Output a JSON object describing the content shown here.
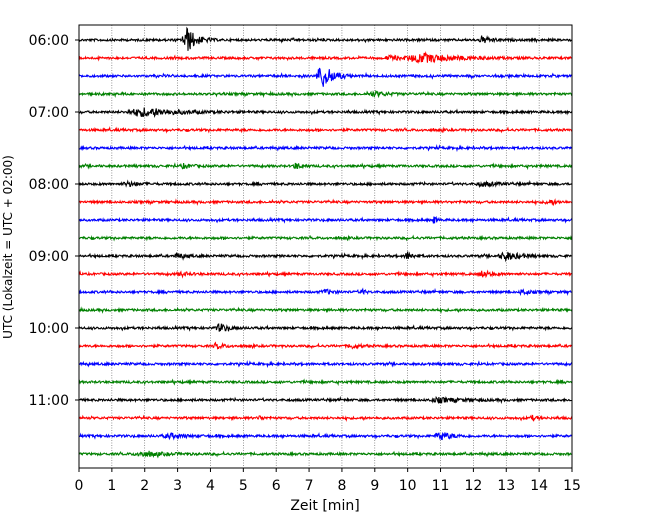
{
  "chart_data": {
    "type": "line",
    "title": "",
    "xlabel": "Zeit  [min]",
    "ylabel": "UTC (Lokalzeit = UTC + 02:00)",
    "xlim": [
      0,
      15
    ],
    "x_ticks": [
      0,
      1,
      2,
      3,
      4,
      5,
      6,
      7,
      8,
      9,
      10,
      11,
      12,
      13,
      14,
      15
    ],
    "y_tick_labels": [
      "06:00",
      "07:00",
      "08:00",
      "09:00",
      "10:00",
      "11:00"
    ],
    "grid": "vertical dotted",
    "trace_colors": [
      "#000000",
      "#ff0000",
      "#0000ff",
      "#008000"
    ],
    "traces": [
      {
        "start": "06:00",
        "color": "#000000",
        "events": [
          {
            "t": 3.3,
            "amp": 12,
            "dur": 0.35
          },
          {
            "t": 12.3,
            "amp": 3,
            "dur": 0.3
          }
        ]
      },
      {
        "start": "06:15",
        "color": "#ff0000",
        "events": [
          {
            "t": 10.5,
            "amp": 4,
            "dur": 1.2
          },
          {
            "t": 9.5,
            "amp": 2,
            "dur": 0.5
          }
        ]
      },
      {
        "start": "06:30",
        "color": "#0000ff",
        "events": [
          {
            "t": 7.4,
            "amp": 12,
            "dur": 0.4
          }
        ]
      },
      {
        "start": "06:45",
        "color": "#008000",
        "events": [
          {
            "t": 9.0,
            "amp": 2,
            "dur": 0.5
          }
        ]
      },
      {
        "start": "07:00",
        "color": "#000000",
        "events": [
          {
            "t": 2.0,
            "amp": 4,
            "dur": 1.2
          }
        ]
      },
      {
        "start": "07:15",
        "color": "#ff0000",
        "events": []
      },
      {
        "start": "07:30",
        "color": "#0000ff",
        "events": []
      },
      {
        "start": "07:45",
        "color": "#008000",
        "events": [
          {
            "t": 6.6,
            "amp": 3,
            "dur": 0.2
          },
          {
            "t": 3.2,
            "amp": 2,
            "dur": 0.3
          }
        ]
      },
      {
        "start": "08:00",
        "color": "#000000",
        "events": [
          {
            "t": 1.5,
            "amp": 2,
            "dur": 0.4
          },
          {
            "t": 12.3,
            "amp": 2,
            "dur": 0.5
          }
        ]
      },
      {
        "start": "08:15",
        "color": "#ff0000",
        "events": [
          {
            "t": 14.3,
            "amp": 2,
            "dur": 0.3
          }
        ]
      },
      {
        "start": "08:30",
        "color": "#0000ff",
        "events": [
          {
            "t": 10.8,
            "amp": 4,
            "dur": 0.1
          }
        ]
      },
      {
        "start": "08:45",
        "color": "#008000",
        "events": []
      },
      {
        "start": "09:00",
        "color": "#000000",
        "events": [
          {
            "t": 10.0,
            "amp": 4,
            "dur": 0.2
          },
          {
            "t": 13.0,
            "amp": 4,
            "dur": 0.5
          },
          {
            "t": 3.0,
            "amp": 2,
            "dur": 0.3
          }
        ]
      },
      {
        "start": "09:15",
        "color": "#ff0000",
        "events": [
          {
            "t": 12.3,
            "amp": 3,
            "dur": 0.3
          },
          {
            "t": 3.1,
            "amp": 2,
            "dur": 0.3
          }
        ]
      },
      {
        "start": "09:30",
        "color": "#0000ff",
        "events": [
          {
            "t": 8.6,
            "amp": 4,
            "dur": 0.1
          },
          {
            "t": 13.5,
            "amp": 3,
            "dur": 0.2
          },
          {
            "t": 7.5,
            "amp": 2,
            "dur": 0.3
          }
        ]
      },
      {
        "start": "09:45",
        "color": "#008000",
        "events": []
      },
      {
        "start": "10:00",
        "color": "#000000",
        "events": [
          {
            "t": 4.3,
            "amp": 4,
            "dur": 0.3
          }
        ]
      },
      {
        "start": "10:15",
        "color": "#ff0000",
        "events": [
          {
            "t": 4.2,
            "amp": 2,
            "dur": 0.3
          },
          {
            "t": 8.3,
            "amp": 2,
            "dur": 0.3
          }
        ]
      },
      {
        "start": "10:30",
        "color": "#0000ff",
        "events": []
      },
      {
        "start": "10:45",
        "color": "#008000",
        "events": []
      },
      {
        "start": "11:00",
        "color": "#000000",
        "events": [
          {
            "t": 11.0,
            "amp": 2,
            "dur": 0.8
          }
        ]
      },
      {
        "start": "11:15",
        "color": "#ff0000",
        "events": [
          {
            "t": 5.5,
            "amp": 3,
            "dur": 0.1
          },
          {
            "t": 13.8,
            "amp": 2,
            "dur": 0.2
          }
        ]
      },
      {
        "start": "11:30",
        "color": "#0000ff",
        "events": [
          {
            "t": 11.0,
            "amp": 4,
            "dur": 0.4
          },
          {
            "t": 2.8,
            "amp": 2,
            "dur": 0.6
          }
        ]
      },
      {
        "start": "11:45",
        "color": "#008000",
        "events": [
          {
            "t": 2.0,
            "amp": 2,
            "dur": 0.8
          }
        ]
      }
    ]
  }
}
